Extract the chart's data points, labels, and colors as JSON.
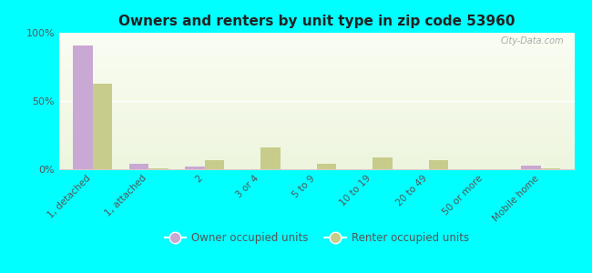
{
  "title": "Owners and renters by unit type in zip code 53960",
  "categories": [
    "1, detached",
    "1, attached",
    "2",
    "3 or 4",
    "5 to 9",
    "10 to 19",
    "20 to 49",
    "50 or more",
    "Mobile home"
  ],
  "owner_values": [
    91,
    4,
    2,
    0,
    0,
    0,
    0,
    0,
    3
  ],
  "renter_values": [
    63,
    1,
    7,
    16,
    4,
    9,
    7,
    0,
    1
  ],
  "owner_color": "#c9a8d4",
  "renter_color": "#c8cc8a",
  "outer_bg": "#00ffff",
  "ylim": [
    0,
    100
  ],
  "yticks": [
    0,
    50,
    100
  ],
  "ytick_labels": [
    "0%",
    "50%",
    "100%"
  ],
  "bar_width": 0.35,
  "legend_owner": "Owner occupied units",
  "legend_renter": "Renter occupied units",
  "watermark": "City-Data.com"
}
